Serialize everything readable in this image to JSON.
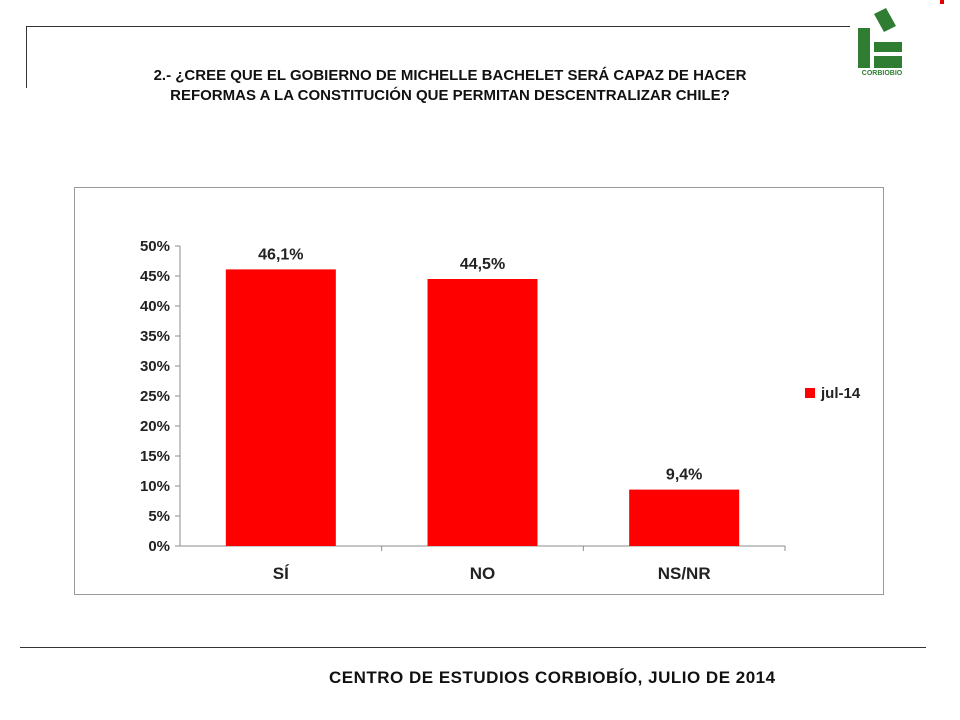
{
  "header": {
    "title_line1": "2.- ¿CREE QUE EL GOBIERNO DE MICHELLE BACHELET SERÁ CAPAZ DE HACER",
    "title_line2": "REFORMAS A LA CONSTITUCIÓN QUE PERMITAN DESCENTRALIZAR CHILE?"
  },
  "logo": {
    "text": "CORBIOBIO",
    "color": "#2e7d32"
  },
  "chart_data": {
    "type": "bar",
    "categories": [
      "SÍ",
      "NO",
      "NS/NR"
    ],
    "series": [
      {
        "name": "jul-14",
        "values": [
          46.1,
          44.5,
          9.4
        ],
        "color": "#ff0000"
      }
    ],
    "data_labels": [
      "46,1%",
      "44,5%",
      "9,4%"
    ],
    "y_ticks": [
      "0%",
      "5%",
      "10%",
      "15%",
      "20%",
      "25%",
      "30%",
      "35%",
      "40%",
      "45%",
      "50%"
    ],
    "ylim": [
      0,
      50
    ],
    "grid": false,
    "legend_position": "right"
  },
  "footer": {
    "text": "CENTRO DE ESTUDIOS CORBIOBÍO, JULIO DE 2014"
  }
}
